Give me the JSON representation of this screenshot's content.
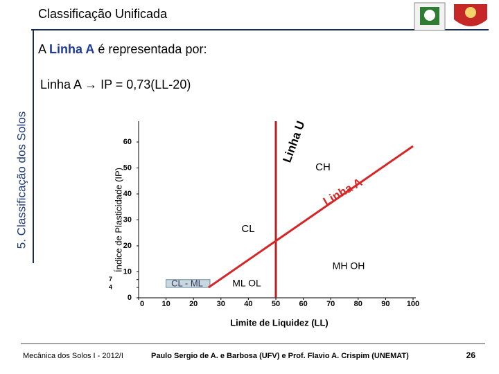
{
  "header": {
    "title": "Classificação Unificada"
  },
  "sidebar": {
    "label": "5. Classificação dos Solos"
  },
  "intro": {
    "before": "A ",
    "highlight": "Linha A",
    "after": " é representada por:"
  },
  "equation": "Linha A → IP = 0,73(LL-20)",
  "chart_data": {
    "type": "plasticity",
    "xlabel": "Limite de Liquidez (LL)",
    "ylabel": "Índice de Plasticidade (IP)",
    "xlim": [
      0,
      100
    ],
    "ylim": [
      0,
      68
    ],
    "xticks": [
      0,
      10,
      20,
      30,
      40,
      50,
      60,
      70,
      80,
      90,
      100
    ],
    "yticks": [
      0,
      4,
      7,
      10,
      20,
      30,
      40,
      50,
      60
    ],
    "a_line": {
      "x": [
        25.48,
        100
      ],
      "values": [
        4,
        58.4
      ],
      "color": "#d62728"
    },
    "ll_line": {
      "x": [
        50,
        50
      ],
      "values": [
        0,
        68
      ],
      "color": "#b22222"
    },
    "clml": {
      "x": [
        10,
        26
      ],
      "values": [
        4,
        7
      ],
      "color": "#c8d8e0"
    },
    "labels": [
      "Linha U",
      "CH",
      "Linha A",
      "CL",
      "MH  OH",
      "ML  OL",
      "CL - ML"
    ]
  },
  "footer": {
    "course": "Mecânica dos Solos I - 2012/I",
    "authors": "Paulo Sergio de A. e Barbosa (UFV) e Prof. Flavio  A. Crispim (UNEMAT)",
    "page": "26"
  }
}
